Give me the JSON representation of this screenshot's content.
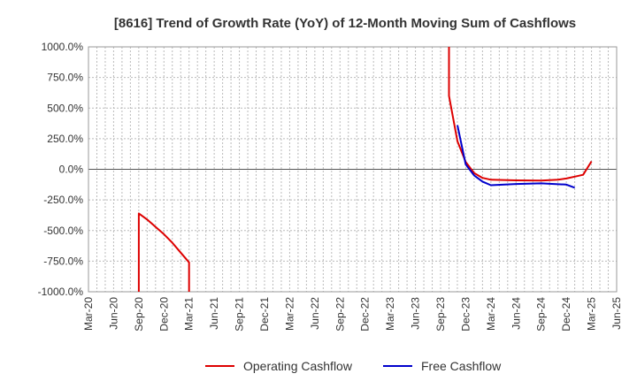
{
  "chart_data": {
    "type": "line",
    "title": "[8616]  Trend of Growth Rate (YoY) of 12-Month Moving Sum of Cashflows",
    "xlabel": "",
    "ylabel": "",
    "ylim": [
      -1000,
      1000
    ],
    "yticks": [
      1000,
      750,
      500,
      250,
      0,
      -250,
      -500,
      -750,
      -1000
    ],
    "ytick_labels": [
      "1000.0%",
      "750.0%",
      "500.0%",
      "250.0%",
      "0.0%",
      "-250.0%",
      "-500.0%",
      "-750.0%",
      "-1000.0%"
    ],
    "xlim": [
      "2020-03",
      "2025-06"
    ],
    "xtick_labels": [
      "Mar-20",
      "Jun-20",
      "Sep-20",
      "Dec-20",
      "Mar-21",
      "Jun-21",
      "Sep-21",
      "Dec-21",
      "Mar-22",
      "Jun-22",
      "Sep-22",
      "Dec-22",
      "Mar-23",
      "Jun-23",
      "Sep-23",
      "Dec-23",
      "Mar-24",
      "Jun-24",
      "Sep-24",
      "Dec-24",
      "Mar-25",
      "Jun-25"
    ],
    "grid": true,
    "legend_position": "bottom",
    "series": [
      {
        "name": "Operating Cashflow",
        "color": "#dd0000",
        "segments": [
          [
            [
              "2020-09",
              -1000
            ],
            [
              "2020-09",
              -360
            ],
            [
              "2020-10",
              -410
            ],
            [
              "2020-11",
              -470
            ],
            [
              "2020-12",
              -530
            ],
            [
              "2021-01",
              -600
            ],
            [
              "2021-02",
              -680
            ],
            [
              "2021-03",
              -760
            ],
            [
              "2021-03",
              -1000
            ]
          ],
          [
            [
              "2023-10",
              1000
            ],
            [
              "2023-10",
              600
            ],
            [
              "2023-11",
              230
            ],
            [
              "2023-12",
              60
            ],
            [
              "2024-01",
              -30
            ],
            [
              "2024-02",
              -70
            ],
            [
              "2024-03",
              -85
            ],
            [
              "2024-06",
              -90
            ],
            [
              "2024-09",
              -92
            ],
            [
              "2024-11",
              -85
            ],
            [
              "2024-12",
              -75
            ],
            [
              "2025-01",
              -60
            ],
            [
              "2025-02",
              -45
            ],
            [
              "2025-03",
              65
            ]
          ]
        ]
      },
      {
        "name": "Free Cashflow",
        "color": "#0000cc",
        "segments": [
          [
            [
              "2023-11",
              360
            ],
            [
              "2023-12",
              40
            ],
            [
              "2024-01",
              -50
            ],
            [
              "2024-02",
              -100
            ],
            [
              "2024-03",
              -130
            ],
            [
              "2024-06",
              -120
            ],
            [
              "2024-09",
              -115
            ],
            [
              "2024-12",
              -125
            ],
            [
              "2025-01",
              -150
            ]
          ]
        ]
      }
    ]
  }
}
